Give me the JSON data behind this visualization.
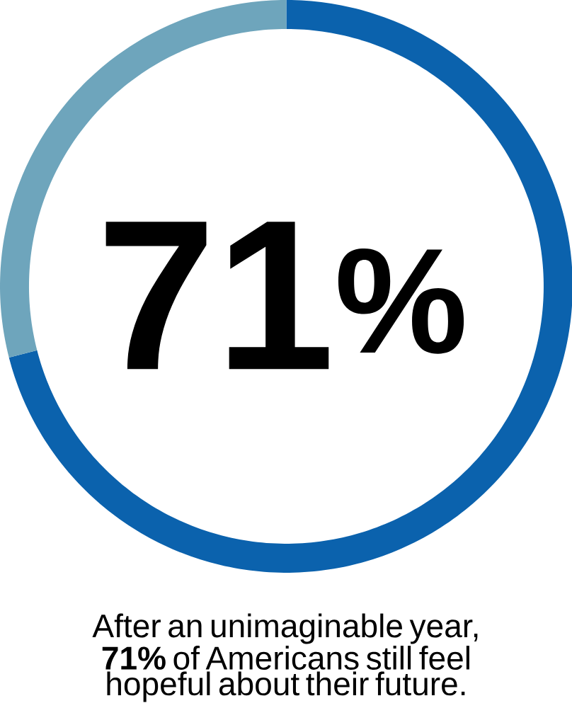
{
  "chart_data": {
    "type": "donut",
    "categories": [
      null,
      null
    ],
    "values": [
      71,
      29
    ],
    "colors": [
      "#0b62ad",
      "#6ea5bc"
    ],
    "annotations": [
      "71$^{%}$",
      "After an unimaginable year, **71%** of Americans still feel hopeful about their future."
    ]
  }
}
